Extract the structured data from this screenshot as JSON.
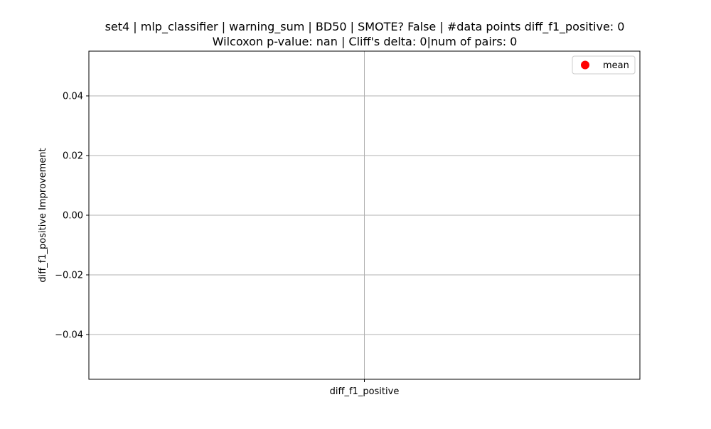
{
  "chart_data": {
    "type": "scatter",
    "title_line1": "set4 | mlp_classifier | warning_sum | BD50 | SMOTE? False | #data points diff_f1_positive: 0",
    "title_line2": "Wilcoxon p-value: nan | Cliff's delta: 0|num of pairs: 0",
    "xlabel": "",
    "ylabel": "diff_f1_positive Improvement",
    "categories": [
      "diff_f1_positive"
    ],
    "series": [
      {
        "name": "mean",
        "values": [],
        "color": "#ff0000"
      }
    ],
    "ylim": [
      -0.055,
      0.055
    ],
    "yticks": [
      -0.04,
      -0.02,
      0.0,
      0.02,
      0.04
    ],
    "ytick_labels": [
      "−0.04",
      "−0.02",
      "0.00",
      "0.02",
      "0.04"
    ],
    "grid": true,
    "legend_position": "upper-right",
    "colors": {
      "axis": "#000000",
      "grid": "#b0b0b0",
      "marker": "#ff0000"
    }
  }
}
